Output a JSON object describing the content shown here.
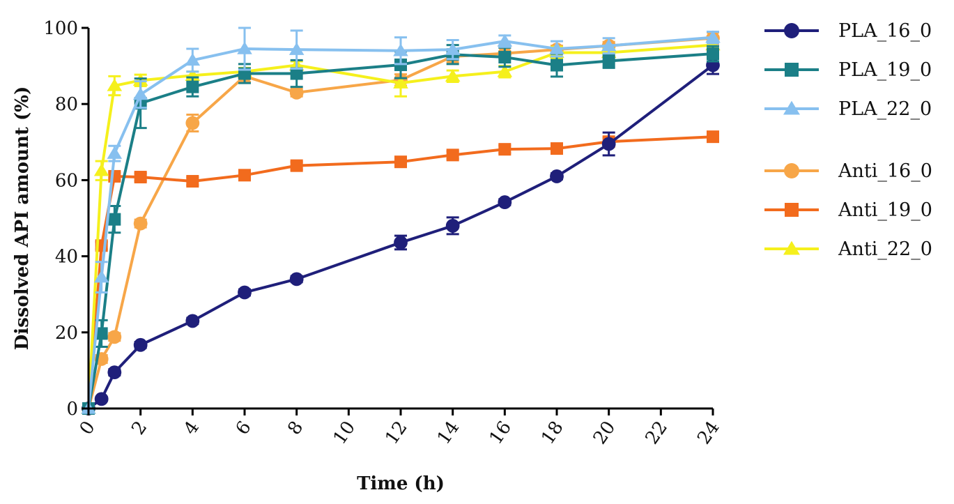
{
  "chart_data": {
    "type": "line",
    "title": "",
    "xlabel": "Time (h)",
    "ylabel": "Dissolved API amount (%)",
    "xlim": [
      0,
      24
    ],
    "ylim": [
      0,
      100
    ],
    "xticks": [
      "0",
      "2",
      "4",
      "6",
      "8",
      "10",
      "12",
      "14",
      "16",
      "18",
      "20",
      "22",
      "24"
    ],
    "yticks": [
      "0",
      "20",
      "40",
      "60",
      "80",
      "100"
    ],
    "legend_position": "right",
    "series": [
      {
        "name": "PLA_16_0",
        "color": "#1f1f7a",
        "marker": "circle",
        "x": [
          0,
          0.5,
          1,
          2,
          4,
          6,
          8,
          12,
          14,
          16,
          18,
          20,
          24
        ],
        "values": [
          0,
          2.5,
          9.5,
          16.7,
          23,
          30.5,
          34,
          43.6,
          48,
          54.2,
          61,
          69.5,
          90.2
        ],
        "errors": [
          0,
          0.5,
          0.8,
          0.8,
          0.8,
          0.8,
          0.8,
          1.8,
          2.2,
          0.8,
          0.8,
          3,
          2.3
        ]
      },
      {
        "name": "PLA_19_0",
        "color": "#1b7f87",
        "marker": "square",
        "x": [
          0,
          0.5,
          1,
          2,
          4,
          6,
          8,
          12,
          14,
          16,
          18,
          20,
          24
        ],
        "values": [
          0,
          19.7,
          49.7,
          80.2,
          84.5,
          88,
          88,
          90.3,
          93,
          92.3,
          90.2,
          91.3,
          93.2
        ],
        "errors": [
          0,
          3.5,
          3.5,
          6.5,
          2.5,
          2.5,
          3.5,
          3.5,
          2.5,
          2.5,
          3,
          1.8,
          2
        ]
      },
      {
        "name": "PLA_22_0",
        "color": "#87c0ef",
        "marker": "triangle",
        "x": [
          0,
          0.5,
          1,
          2,
          4,
          6,
          8,
          12,
          14,
          16,
          18,
          20,
          24
        ],
        "values": [
          0,
          34.5,
          67,
          82.5,
          91.5,
          94.5,
          94.3,
          94,
          94.3,
          96.5,
          94.5,
          95.3,
          97.5
        ],
        "errors": [
          0,
          4,
          2,
          3.5,
          3,
          5.5,
          5,
          3.5,
          2.5,
          1.5,
          2,
          2,
          1.5
        ]
      },
      {
        "name": "Anti_16_0",
        "color": "#f7a648",
        "marker": "circle",
        "x": [
          0,
          0.5,
          1,
          2,
          4,
          6,
          8,
          12,
          14,
          16,
          18,
          20,
          24
        ],
        "values": [
          0,
          13,
          18.8,
          48.6,
          75,
          87.3,
          83,
          86.3,
          92.5,
          93.3,
          94.3,
          95.3,
          97.3
        ],
        "errors": [
          0,
          1,
          1,
          1,
          2.2,
          1.5,
          1,
          1.5,
          1.5,
          1.5,
          1,
          1,
          1.5
        ]
      },
      {
        "name": "Anti_19_0",
        "color": "#f26b1d",
        "marker": "square",
        "x": [
          0,
          0.5,
          1,
          2,
          4,
          6,
          8,
          12,
          14,
          16,
          18,
          20,
          24
        ],
        "values": [
          0,
          42.8,
          61,
          60.8,
          59.7,
          61.3,
          63.8,
          64.8,
          66.6,
          68.1,
          68.3,
          70.1,
          71.4
        ],
        "errors": [
          0,
          1,
          1,
          1,
          1,
          1,
          1,
          1,
          1,
          1,
          1,
          1,
          1
        ]
      },
      {
        "name": "Anti_22_0",
        "color": "#f5f01c",
        "marker": "triangle",
        "x": [
          0,
          0.5,
          1,
          2,
          4,
          6,
          8,
          12,
          14,
          16,
          18,
          20,
          24
        ],
        "values": [
          0,
          62.5,
          84.8,
          86.2,
          87.5,
          88.5,
          90.2,
          85.5,
          87.3,
          88.5,
          93.5,
          93.5,
          95.5
        ],
        "errors": [
          0,
          2.5,
          2.5,
          1.5,
          1,
          1,
          1,
          3.5,
          1.5,
          1.5,
          1.5,
          1,
          1
        ]
      }
    ]
  }
}
